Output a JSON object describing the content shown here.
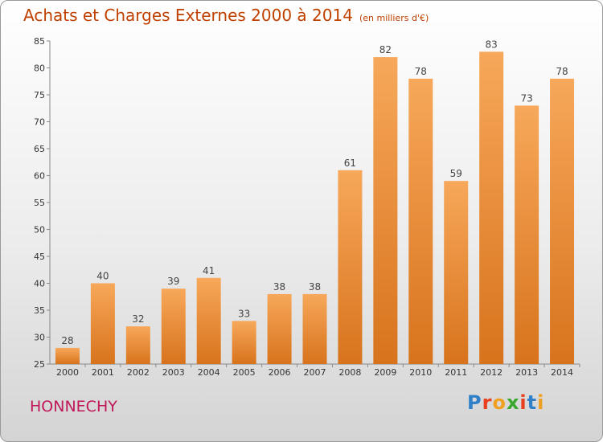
{
  "header": {
    "title": "Achats et Charges Externes 2000 à 2014",
    "unit": "(en milliers d'€)"
  },
  "footer": {
    "commune": "HONNECHY",
    "logo_text": "Proxiti"
  },
  "colors": {
    "title": "#c04000",
    "commune": "#c0185a",
    "bar_light": "#f7a85a",
    "bar_dark": "#d8731c"
  },
  "chart_data": {
    "type": "bar",
    "title": "Achats et Charges Externes 2000 à 2014",
    "categories": [
      "2000",
      "2001",
      "2002",
      "2003",
      "2004",
      "2005",
      "2006",
      "2007",
      "2008",
      "2009",
      "2010",
      "2011",
      "2012",
      "2013",
      "2014"
    ],
    "values": [
      28,
      40,
      32,
      39,
      41,
      33,
      38,
      38,
      61,
      82,
      78,
      59,
      83,
      73,
      78
    ],
    "ylim": [
      25,
      85
    ],
    "yticks": [
      25,
      30,
      35,
      40,
      45,
      50,
      55,
      60,
      65,
      70,
      75,
      80,
      85
    ],
    "xlabel": "",
    "ylabel": "",
    "grid": false,
    "legend": "none"
  }
}
